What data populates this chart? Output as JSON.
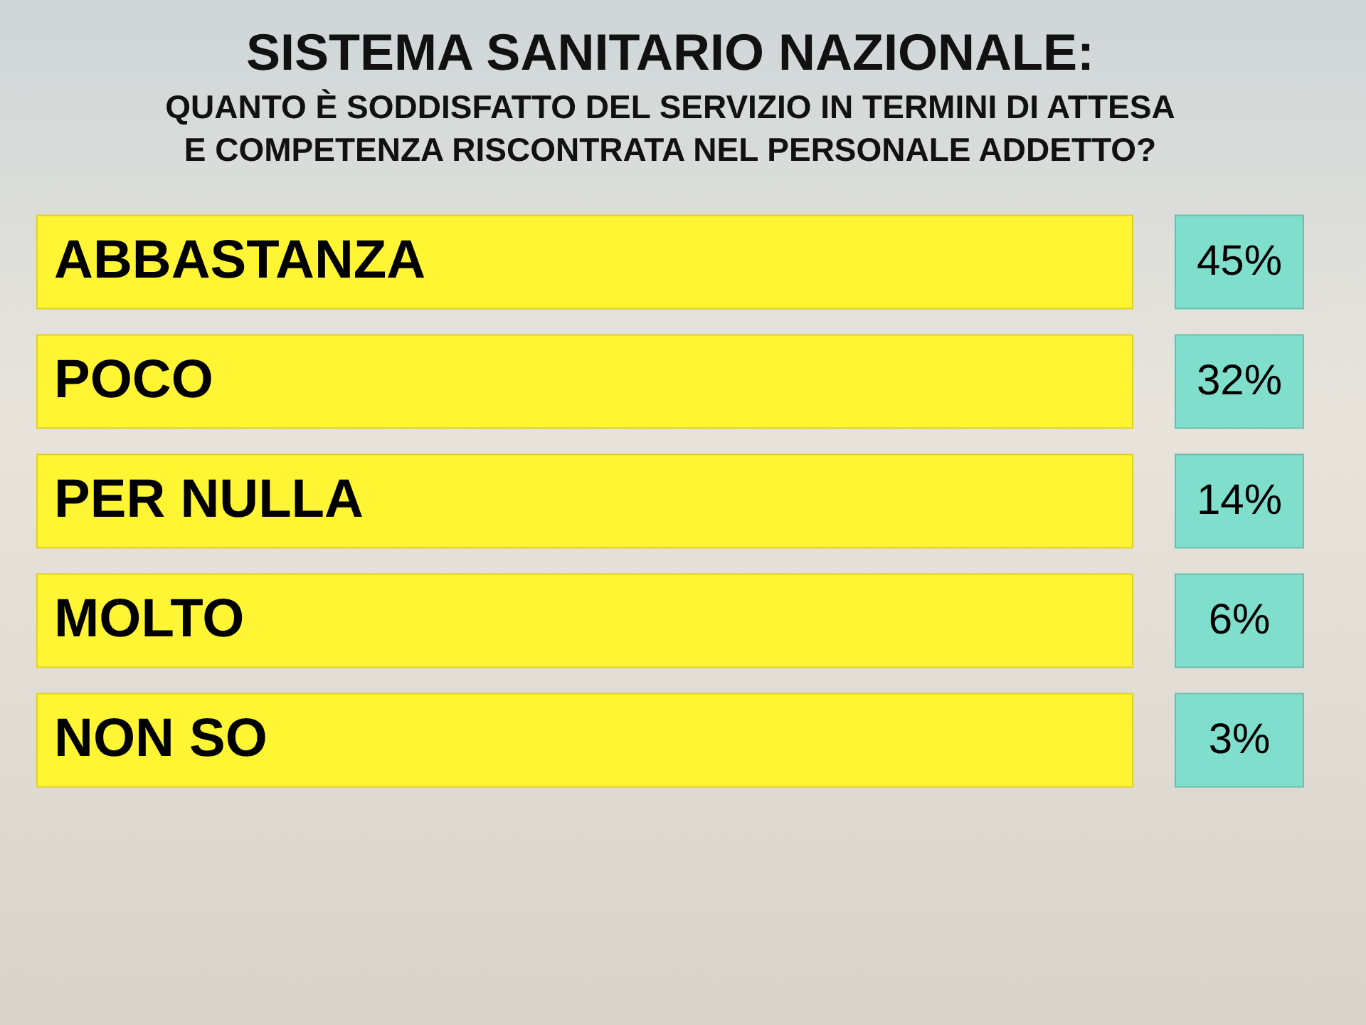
{
  "chart_data": {
    "type": "other",
    "title": "SISTEMA SANITARIO NAZIONALE:",
    "subtitle": "QUANTO È SODDISFATTO DEL SERVIZIO IN TERMINI DI ATTESA\nE COMPETENZA RISCONTRATA NEL PERSONALE ADDETTO?",
    "categories": [
      "ABBASTANZA",
      "POCO",
      "PER NULLA",
      "MOLTO",
      "NON SO"
    ],
    "values": [
      45,
      32,
      14,
      6,
      3
    ],
    "value_labels": [
      "45%",
      "32%",
      "14%",
      "6%",
      "3%"
    ],
    "color": "#80dfcc"
  }
}
